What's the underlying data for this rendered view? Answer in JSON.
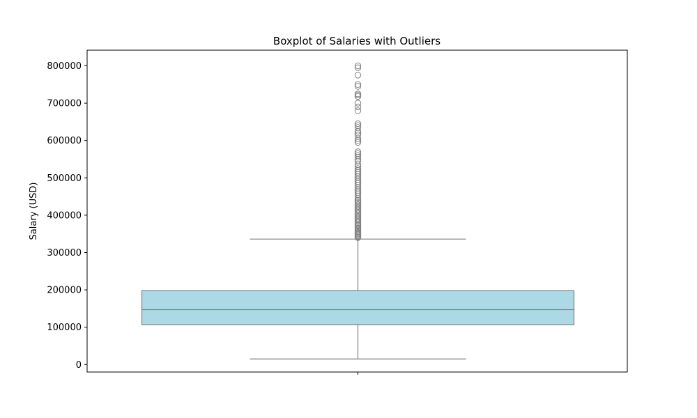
{
  "chart_data": {
    "type": "boxplot",
    "title": "Boxplot of Salaries with Outliers",
    "xlabel": "",
    "ylabel": "Salary (USD)",
    "ylim": [
      -20000,
      842000
    ],
    "yticks": [
      0,
      100000,
      200000,
      300000,
      400000,
      500000,
      600000,
      700000,
      800000
    ],
    "ytick_labels": [
      "0",
      "100000",
      "200000",
      "300000",
      "400000",
      "500000",
      "600000",
      "700000",
      "800000"
    ],
    "xticks": [
      ""
    ],
    "grid": false,
    "legend": "none",
    "colors": {
      "box_fill": "#add8e6",
      "box_edge": "#808080",
      "median": "#808080",
      "whisker": "#808080",
      "outlier_edge": "#808080",
      "axes_edge": "#000000"
    },
    "box": {
      "whisker_low": 15000,
      "q1": 107000,
      "median": 147000,
      "q3": 198000,
      "whisker_high": 336000
    },
    "outliers": [
      340000,
      342000,
      345000,
      348000,
      350000,
      353000,
      356000,
      360000,
      363000,
      366000,
      370000,
      373000,
      376000,
      380000,
      384000,
      388000,
      392000,
      396000,
      400000,
      404000,
      408000,
      412000,
      416000,
      420000,
      424000,
      428000,
      432000,
      436000,
      440000,
      445000,
      450000,
      455000,
      460000,
      465000,
      470000,
      475000,
      480000,
      485000,
      490000,
      495000,
      500000,
      505000,
      510000,
      515000,
      520000,
      525000,
      530000,
      535000,
      545000,
      550000,
      555000,
      560000,
      565000,
      570000,
      595000,
      600000,
      605000,
      615000,
      620000,
      625000,
      635000,
      640000,
      645000,
      680000,
      690000,
      700000,
      718000,
      722000,
      725000,
      745000,
      750000,
      775000,
      795000,
      800000
    ]
  }
}
